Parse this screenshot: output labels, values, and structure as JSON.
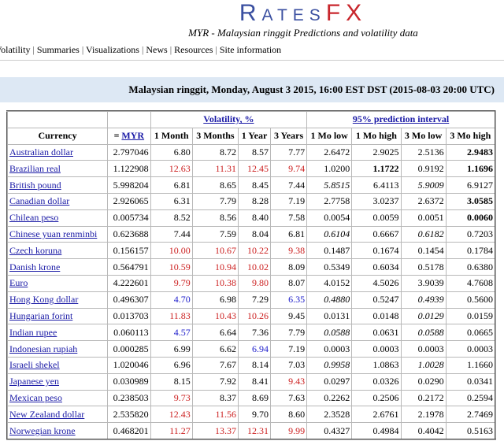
{
  "header": {
    "logo": [
      "Rates",
      "FX"
    ],
    "subtitle": "MYR - Malaysian ringgit Predictions and volatility data"
  },
  "nav": [
    "Volatility",
    "Summaries",
    "Visualizations",
    "News",
    "Resources",
    "Site information"
  ],
  "caption": "Malaysian ringgit, Monday, August 3 2015, 16:00 EST DST (2015-08-03 20:00 UTC)",
  "table": {
    "group_headers": [
      "Volatility, %",
      "95% prediction interval"
    ],
    "currency_header": "Currency",
    "rate_header": [
      "=",
      "MYR"
    ],
    "volatility_headers": [
      "1 Month",
      "3 Months",
      "1 Year",
      "3 Years"
    ],
    "interval_headers": [
      "1 Mo low",
      "1 Mo high",
      "3 Mo low",
      "3 Mo high"
    ],
    "rows": [
      {
        "currency": "Australian dollar",
        "rate": "2.797046",
        "volatility": [
          "6.80",
          "8.72",
          "8.57",
          "7.77"
        ],
        "vol_color": [
          "black",
          "black",
          "black",
          "black"
        ],
        "interval": [
          "2.6472",
          "2.9025",
          "2.5136",
          "2.9483"
        ],
        "interval_style": [
          "normal",
          "normal",
          "normal",
          "bold"
        ]
      },
      {
        "currency": "Brazilian real",
        "rate": "1.122908",
        "volatility": [
          "12.63",
          "11.31",
          "12.45",
          "9.74"
        ],
        "vol_color": [
          "red",
          "red",
          "red",
          "red"
        ],
        "interval": [
          "1.0200",
          "1.1722",
          "0.9192",
          "1.1696"
        ],
        "interval_style": [
          "normal",
          "bold",
          "normal",
          "bold"
        ]
      },
      {
        "currency": "British pound",
        "rate": "5.998204",
        "volatility": [
          "6.81",
          "8.65",
          "8.45",
          "7.44"
        ],
        "vol_color": [
          "black",
          "black",
          "black",
          "black"
        ],
        "interval": [
          "5.8515",
          "6.4113",
          "5.9009",
          "6.9127"
        ],
        "interval_style": [
          "italic",
          "normal",
          "italic",
          "normal"
        ]
      },
      {
        "currency": "Canadian dollar",
        "rate": "2.926065",
        "volatility": [
          "6.31",
          "7.79",
          "8.28",
          "7.19"
        ],
        "vol_color": [
          "black",
          "black",
          "black",
          "black"
        ],
        "interval": [
          "2.7758",
          "3.0237",
          "2.6372",
          "3.0585"
        ],
        "interval_style": [
          "normal",
          "normal",
          "normal",
          "bold"
        ]
      },
      {
        "currency": "Chilean peso",
        "rate": "0.005734",
        "volatility": [
          "8.52",
          "8.56",
          "8.40",
          "7.58"
        ],
        "vol_color": [
          "black",
          "black",
          "black",
          "black"
        ],
        "interval": [
          "0.0054",
          "0.0059",
          "0.0051",
          "0.0060"
        ],
        "interval_style": [
          "normal",
          "normal",
          "normal",
          "bold"
        ]
      },
      {
        "currency": "Chinese yuan renminbi",
        "rate": "0.623688",
        "volatility": [
          "7.44",
          "7.59",
          "8.04",
          "6.81"
        ],
        "vol_color": [
          "black",
          "black",
          "black",
          "black"
        ],
        "interval": [
          "0.6104",
          "0.6667",
          "0.6182",
          "0.7203"
        ],
        "interval_style": [
          "italic",
          "normal",
          "italic",
          "normal"
        ]
      },
      {
        "currency": "Czech koruna",
        "rate": "0.156157",
        "volatility": [
          "10.00",
          "10.67",
          "10.22",
          "9.38"
        ],
        "vol_color": [
          "red",
          "red",
          "red",
          "red"
        ],
        "interval": [
          "0.1487",
          "0.1674",
          "0.1454",
          "0.1784"
        ],
        "interval_style": [
          "normal",
          "normal",
          "normal",
          "normal"
        ]
      },
      {
        "currency": "Danish krone",
        "rate": "0.564791",
        "volatility": [
          "10.59",
          "10.94",
          "10.02",
          "8.09"
        ],
        "vol_color": [
          "red",
          "red",
          "red",
          "black"
        ],
        "interval": [
          "0.5349",
          "0.6034",
          "0.5178",
          "0.6380"
        ],
        "interval_style": [
          "normal",
          "normal",
          "normal",
          "normal"
        ]
      },
      {
        "currency": "Euro",
        "rate": "4.222601",
        "volatility": [
          "9.79",
          "10.38",
          "9.80",
          "8.07"
        ],
        "vol_color": [
          "red",
          "red",
          "red",
          "black"
        ],
        "interval": [
          "4.0152",
          "4.5026",
          "3.9039",
          "4.7608"
        ],
        "interval_style": [
          "normal",
          "normal",
          "normal",
          "normal"
        ]
      },
      {
        "currency": "Hong Kong dollar",
        "rate": "0.496307",
        "volatility": [
          "4.70",
          "6.98",
          "7.29",
          "6.35"
        ],
        "vol_color": [
          "blue",
          "black",
          "black",
          "blue"
        ],
        "interval": [
          "0.4880",
          "0.5247",
          "0.4939",
          "0.5600"
        ],
        "interval_style": [
          "italic",
          "normal",
          "italic",
          "normal"
        ]
      },
      {
        "currency": "Hungarian forint",
        "rate": "0.013703",
        "volatility": [
          "11.83",
          "10.43",
          "10.26",
          "9.45"
        ],
        "vol_color": [
          "red",
          "red",
          "red",
          "black"
        ],
        "interval": [
          "0.0131",
          "0.0148",
          "0.0129",
          "0.0159"
        ],
        "interval_style": [
          "normal",
          "normal",
          "italic",
          "normal"
        ]
      },
      {
        "currency": "Indian rupee",
        "rate": "0.060113",
        "volatility": [
          "4.57",
          "6.64",
          "7.36",
          "7.79"
        ],
        "vol_color": [
          "blue",
          "black",
          "black",
          "black"
        ],
        "interval": [
          "0.0588",
          "0.0631",
          "0.0588",
          "0.0665"
        ],
        "interval_style": [
          "italic",
          "normal",
          "italic",
          "normal"
        ]
      },
      {
        "currency": "Indonesian rupiah",
        "rate": "0.000285",
        "volatility": [
          "6.99",
          "6.62",
          "6.94",
          "7.19"
        ],
        "vol_color": [
          "black",
          "black",
          "blue",
          "black"
        ],
        "interval": [
          "0.0003",
          "0.0003",
          "0.0003",
          "0.0003"
        ],
        "interval_style": [
          "normal",
          "normal",
          "normal",
          "normal"
        ]
      },
      {
        "currency": "Israeli shekel",
        "rate": "1.020046",
        "volatility": [
          "6.96",
          "7.67",
          "8.14",
          "7.03"
        ],
        "vol_color": [
          "black",
          "black",
          "black",
          "black"
        ],
        "interval": [
          "0.9958",
          "1.0863",
          "1.0028",
          "1.1660"
        ],
        "interval_style": [
          "italic",
          "normal",
          "italic",
          "normal"
        ]
      },
      {
        "currency": "Japanese yen",
        "rate": "0.030989",
        "volatility": [
          "8.15",
          "7.92",
          "8.41",
          "9.43"
        ],
        "vol_color": [
          "black",
          "black",
          "black",
          "red"
        ],
        "interval": [
          "0.0297",
          "0.0326",
          "0.0290",
          "0.0341"
        ],
        "interval_style": [
          "normal",
          "normal",
          "normal",
          "normal"
        ]
      },
      {
        "currency": "Mexican peso",
        "rate": "0.238503",
        "volatility": [
          "9.73",
          "8.37",
          "8.69",
          "7.63"
        ],
        "vol_color": [
          "red",
          "black",
          "black",
          "black"
        ],
        "interval": [
          "0.2262",
          "0.2506",
          "0.2172",
          "0.2594"
        ],
        "interval_style": [
          "normal",
          "normal",
          "normal",
          "normal"
        ]
      },
      {
        "currency": "New Zealand dollar",
        "rate": "2.535820",
        "volatility": [
          "12.43",
          "11.56",
          "9.70",
          "8.60"
        ],
        "vol_color": [
          "red",
          "red",
          "black",
          "black"
        ],
        "interval": [
          "2.3528",
          "2.6761",
          "2.1978",
          "2.7469"
        ],
        "interval_style": [
          "normal",
          "normal",
          "normal",
          "normal"
        ]
      },
      {
        "currency": "Norwegian krone",
        "rate": "0.468201",
        "volatility": [
          "11.27",
          "13.37",
          "12.31",
          "9.99"
        ],
        "vol_color": [
          "red",
          "red",
          "red",
          "red"
        ],
        "interval": [
          "0.4327",
          "0.4984",
          "0.4042",
          "0.5163"
        ],
        "interval_style": [
          "normal",
          "normal",
          "normal",
          "normal"
        ]
      }
    ]
  }
}
